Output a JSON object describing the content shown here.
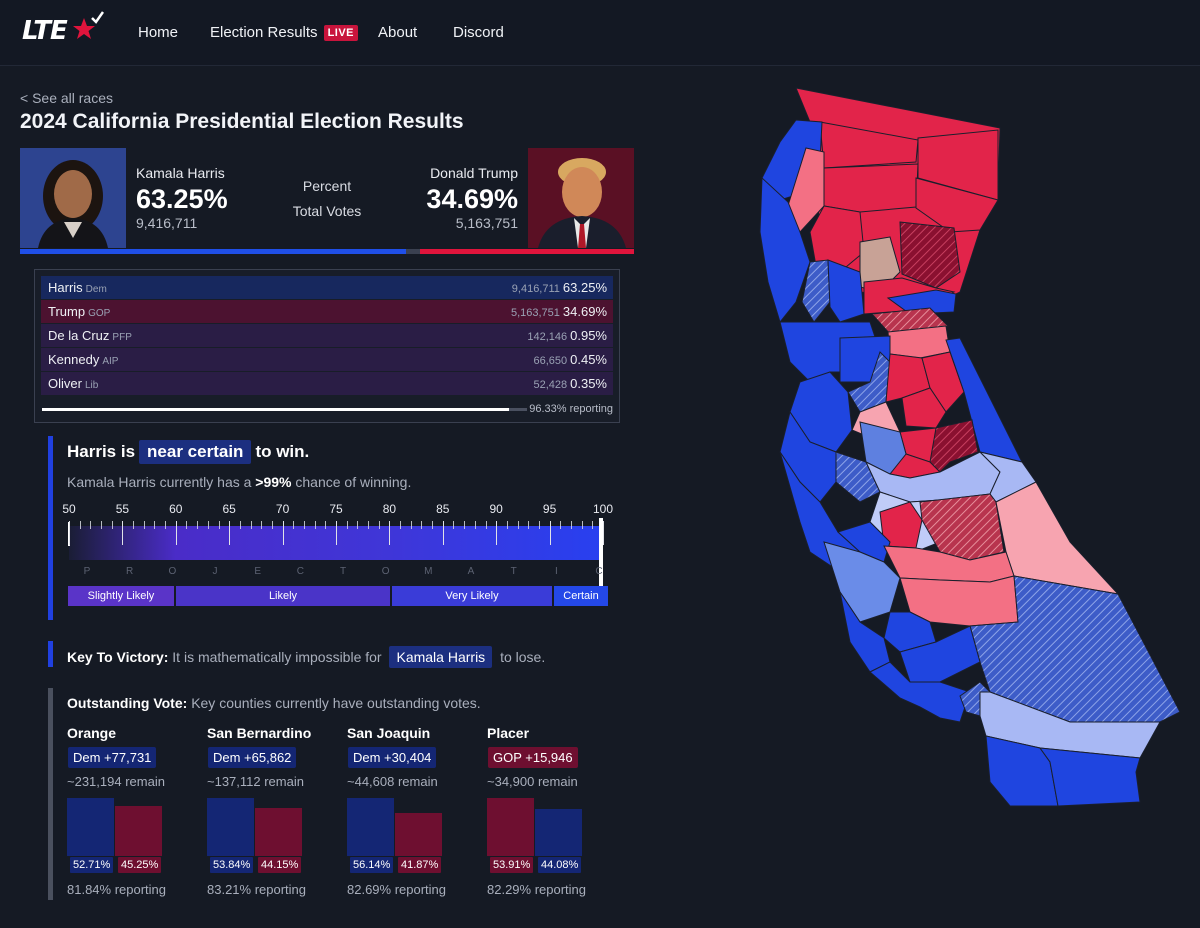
{
  "nav": {
    "logo": "LTE",
    "items": [
      {
        "label": "Home"
      },
      {
        "label": "Election Results",
        "badge": "LIVE"
      },
      {
        "label": "About"
      },
      {
        "label": "Discord"
      }
    ]
  },
  "header": {
    "back": "< See all races",
    "title": "2024 California Presidential Election Results"
  },
  "candidates": {
    "dem": {
      "name": "Kamala Harris",
      "pct": "63.25%",
      "votes": "9,416,711"
    },
    "gop": {
      "name": "Donald Trump",
      "pct": "34.69%",
      "votes": "5,163,751"
    },
    "mid_top": "Percent",
    "mid_bottom": "Total Votes"
  },
  "results": {
    "rows": [
      {
        "name": "Harris",
        "party": "Dem",
        "votes": "9,416,711",
        "pct": "63.25%",
        "color": "#17285e"
      },
      {
        "name": "Trump",
        "party": "GOP",
        "votes": "5,163,751",
        "pct": "34.69%",
        "color": "#4c1230"
      },
      {
        "name": "De la Cruz",
        "party": "PFP",
        "votes": "142,146",
        "pct": "0.95%",
        "color": "#2a1d45"
      },
      {
        "name": "Kennedy",
        "party": "AIP",
        "votes": "66,650",
        "pct": "0.45%",
        "color": "#2a1d45"
      },
      {
        "name": "Oliver",
        "party": "Lib",
        "votes": "52,428",
        "pct": "0.35%",
        "color": "#2a1d45"
      }
    ],
    "reporting_fraction": 0.9633,
    "reporting_label": "96.33% reporting"
  },
  "forecast": {
    "headline_pre": "Harris is",
    "headline_pill": "near certain",
    "headline_post": "to win.",
    "sub_pre": "Kamala Harris currently has a",
    "sub_bold": ">99%",
    "sub_post": "chance of winning.",
    "scale_labels": [
      "50",
      "55",
      "60",
      "65",
      "70",
      "75",
      "80",
      "85",
      "90",
      "95",
      "100"
    ],
    "letters": [
      "P",
      "R",
      "O",
      "J",
      "E",
      "C",
      "T",
      "O",
      "M",
      "A",
      "T",
      "I",
      "C"
    ],
    "buckets": [
      {
        "label": "Slightly Likely",
        "color": "#5a34c8"
      },
      {
        "label": "Likely",
        "color": "#4a34c8"
      },
      {
        "label": "Very Likely",
        "color": "#3a3cd8"
      },
      {
        "label": "Certain",
        "color": "#2448e8"
      }
    ]
  },
  "key_to_victory": {
    "label": "Key To Victory:",
    "text_pre": "It is mathematically impossible for",
    "pill": "Kamala Harris",
    "text_post": "to lose."
  },
  "outstanding": {
    "label": "Outstanding Vote:",
    "text": "Key counties currently have outstanding votes.",
    "counties": [
      {
        "name": "Orange",
        "margin": "Dem +77,731",
        "lead": "dem",
        "remain": "~231,194 remain",
        "dem_pct": "52.71%",
        "gop_pct": "45.25%",
        "dem": 52.71,
        "gop": 45.25,
        "reporting": "81.84% reporting"
      },
      {
        "name": "San Bernardino",
        "margin": "Dem +65,862",
        "lead": "dem",
        "remain": "~137,112 remain",
        "dem_pct": "53.84%",
        "gop_pct": "44.15%",
        "dem": 53.84,
        "gop": 44.15,
        "reporting": "83.21% reporting"
      },
      {
        "name": "San Joaquin",
        "margin": "Dem +30,404",
        "lead": "dem",
        "remain": "~44,608 remain",
        "dem_pct": "56.14%",
        "gop_pct": "41.87%",
        "dem": 56.14,
        "gop": 41.87,
        "reporting": "82.69% reporting"
      },
      {
        "name": "Placer",
        "margin": "GOP +15,946",
        "lead": "gop",
        "remain": "~34,900 remain",
        "gop_pct": "53.91%",
        "dem_pct": "44.08%",
        "dem": 44.08,
        "gop": 53.91,
        "reporting": "82.29% reporting"
      }
    ]
  },
  "colors": {
    "dem": "#1f4fe8",
    "gop": "#e0143c",
    "dem_dark": "#142674",
    "gop_dark": "#6e0f30",
    "background": "#151a24"
  }
}
